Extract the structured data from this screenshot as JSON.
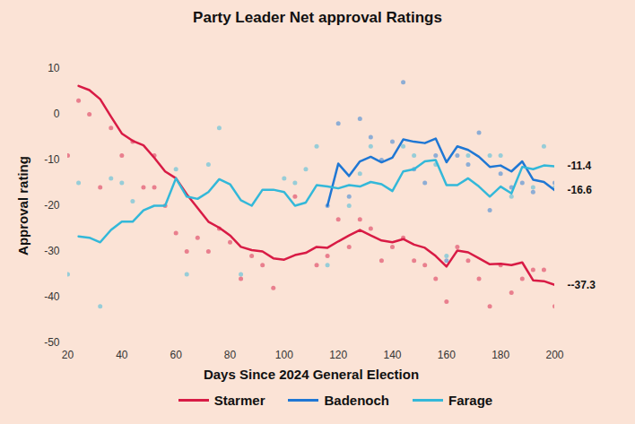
{
  "chart_data": {
    "type": "line",
    "title": "Party Leader Net approval Ratings",
    "x_label": "Days Since 2024 General Election",
    "y_label": "Approval rating",
    "xlim": [
      20,
      200
    ],
    "xticks": [
      20,
      40,
      60,
      80,
      100,
      120,
      140,
      160,
      180,
      200
    ],
    "ylim": [
      -50,
      10
    ],
    "yticks": [
      -50,
      -40,
      -30,
      -20,
      -10,
      0,
      10
    ],
    "grid": false,
    "legend": "bottom",
    "series": [
      {
        "name": "Starmer",
        "color": "#d81b45",
        "x": [
          24,
          28,
          32,
          36,
          40,
          44,
          48,
          52,
          56,
          60,
          64,
          68,
          72,
          76,
          80,
          84,
          88,
          92,
          96,
          100,
          104,
          108,
          112,
          116,
          120,
          124,
          128,
          132,
          136,
          140,
          144,
          148,
          152,
          156,
          160,
          164,
          168,
          172,
          176,
          180,
          184,
          188,
          192,
          196,
          200
        ],
        "values": [
          6.2,
          5.3,
          3.3,
          -0.5,
          -4.2,
          -5.8,
          -6.8,
          -9.5,
          -12.5,
          -14,
          -17.5,
          -20.5,
          -23.5,
          -24.8,
          -26.5,
          -29,
          -29.7,
          -30,
          -31.5,
          -31.8,
          -30.8,
          -30.3,
          -29,
          -29.2,
          -27.8,
          -26.5,
          -25.3,
          -26.5,
          -27.6,
          -28,
          -27.3,
          -28.5,
          -29.2,
          -31,
          -33.3,
          -29.8,
          -30.2,
          -31.5,
          -32.8,
          -32.7,
          -33,
          -32.4,
          -36.3,
          -36.5,
          -37.3
        ],
        "end_label": "--37.3",
        "polls": {
          "x": [
            20,
            24,
            28,
            32,
            36,
            40,
            44,
            48,
            52,
            52,
            56,
            60,
            64,
            68,
            72,
            76,
            80,
            84,
            88,
            92,
            96,
            104,
            112,
            116,
            120,
            124,
            128,
            132,
            136,
            140,
            144,
            148,
            152,
            156,
            160,
            164,
            168,
            172,
            176,
            180,
            184,
            188,
            192,
            196,
            200
          ],
          "values": [
            -9,
            3,
            0,
            -16,
            -3,
            -9,
            -6,
            -16,
            -16,
            -9,
            -20,
            -26,
            -30,
            -27,
            -30,
            -25,
            -28,
            -36,
            -31,
            -33,
            -38,
            -18,
            -33,
            -31,
            -23,
            -29,
            -23,
            -25,
            -32,
            -29,
            -27,
            -32,
            -33,
            -36,
            -41,
            -29,
            -32,
            -36,
            -42,
            -33,
            -39,
            -36,
            -34,
            -34,
            -42
          ]
        }
      },
      {
        "name": "Badenoch",
        "color": "#1f77d4",
        "x": [
          116,
          120,
          124,
          128,
          132,
          136,
          140,
          144,
          148,
          152,
          156,
          160,
          164,
          168,
          172,
          176,
          180,
          184,
          188,
          192,
          196,
          200
        ],
        "values": [
          -20,
          -10.8,
          -13.5,
          -10.3,
          -9.3,
          -10.5,
          -9.5,
          -5.5,
          -6,
          -6.3,
          -5.3,
          -10.5,
          -7,
          -7.8,
          -9.3,
          -11.5,
          -11.2,
          -12.5,
          -10.3,
          -14.3,
          -14.8,
          -16.6
        ],
        "end_label": "-16.6",
        "polls": {
          "x": [
            116,
            120,
            124,
            128,
            132,
            136,
            140,
            144,
            148,
            152,
            156,
            160,
            164,
            168,
            172,
            176,
            180,
            184,
            188,
            192,
            200
          ],
          "values": [
            -20,
            -2,
            -18,
            -1,
            -5,
            -10,
            -6,
            7,
            -12,
            -15,
            -9,
            -32,
            -9,
            -11,
            -4,
            -21,
            -13,
            -16,
            -15,
            -17,
            -15
          ]
        }
      },
      {
        "name": "Farage",
        "color": "#33b8d9",
        "x": [
          24,
          28,
          32,
          36,
          40,
          44,
          48,
          52,
          56,
          60,
          64,
          68,
          72,
          76,
          80,
          84,
          88,
          92,
          96,
          100,
          104,
          108,
          112,
          116,
          120,
          124,
          128,
          132,
          136,
          140,
          144,
          148,
          152,
          156,
          160,
          164,
          168,
          172,
          176,
          180,
          184,
          188,
          192,
          196,
          200
        ],
        "values": [
          -26.7,
          -27,
          -28,
          -25.3,
          -23.5,
          -23.5,
          -21,
          -20,
          -20,
          -14,
          -18,
          -18.5,
          -17,
          -14.2,
          -15.3,
          -18.8,
          -20,
          -16.5,
          -16.5,
          -17,
          -20,
          -19.3,
          -15.5,
          -15.8,
          -16.2,
          -15.5,
          -15.8,
          -14.8,
          -15.3,
          -16.8,
          -12.5,
          -12,
          -10.3,
          -10,
          -15.5,
          -15.5,
          -14,
          -15.8,
          -18,
          -15.8,
          -17.3,
          -11.5,
          -12,
          -11.2,
          -11.4
        ],
        "end_label": "-11.4",
        "polls": {
          "x": [
            20,
            24,
            32,
            36,
            40,
            44,
            60,
            64,
            72,
            76,
            84,
            100,
            104,
            108,
            112,
            116,
            124,
            128,
            132,
            144,
            148,
            156,
            160,
            168,
            176,
            180,
            184,
            192,
            196,
            200
          ],
          "values": [
            -35,
            -15,
            -42,
            -14,
            -15,
            -19,
            -12,
            -35,
            -11,
            -3,
            -35,
            -14,
            -15,
            -12,
            -7,
            -33,
            -20,
            -13,
            -7,
            -7,
            -9,
            -11,
            -31,
            -9,
            -9,
            -9,
            -18,
            -16,
            -7,
            -16
          ]
        }
      }
    ]
  }
}
